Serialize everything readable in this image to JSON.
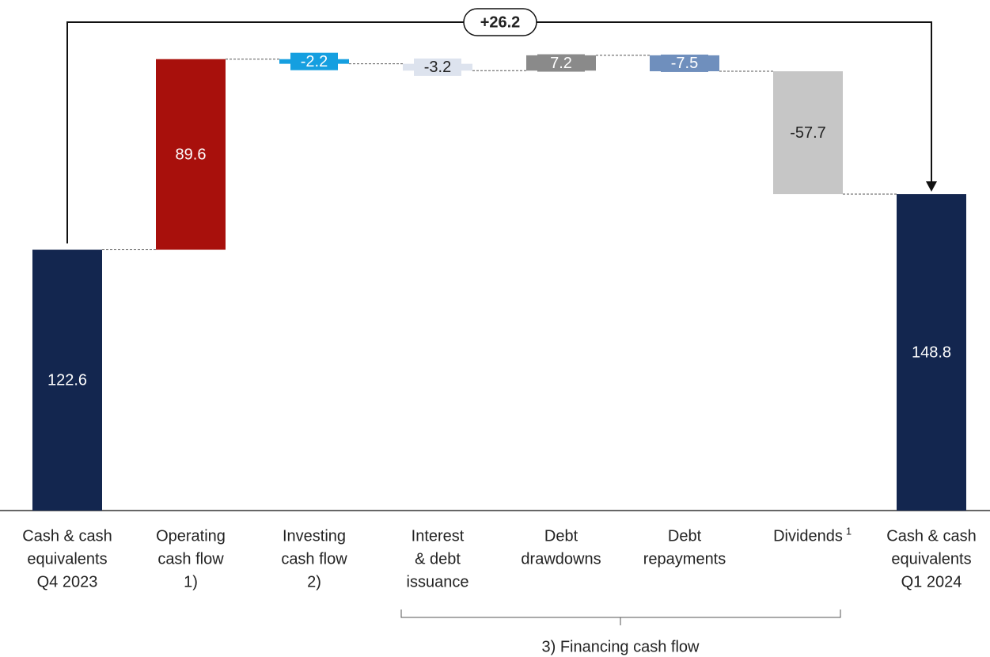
{
  "chart_data": {
    "type": "waterfall",
    "categories": [
      [
        "Cash & cash",
        "equivalents",
        "Q4 2023"
      ],
      [
        "Operating",
        "cash flow",
        "1)"
      ],
      [
        "Investing",
        "cash flow",
        "2)"
      ],
      [
        "Interest",
        "& debt",
        "issuance"
      ],
      [
        "Debt",
        "drawdowns"
      ],
      [
        "Debt",
        "repayments"
      ],
      [
        "Dividends"
      ],
      [
        "Cash & cash",
        "equivalents",
        "Q1 2024"
      ]
    ],
    "values": [
      122.6,
      89.6,
      -2.2,
      -3.2,
      7.2,
      -7.5,
      -57.7,
      148.8
    ],
    "measure": [
      "total",
      "relative",
      "relative",
      "relative",
      "relative",
      "relative",
      "relative",
      "total"
    ],
    "colors": [
      "#13264f",
      "#a8100c",
      "#159fe0",
      "#dde3ee",
      "#8a8a8a",
      "#6f8fbd",
      "#c6c6c6",
      "#13264f"
    ],
    "label_colors": [
      "#ffffff",
      "#ffffff",
      "#ffffff",
      "#222222",
      "#ffffff",
      "#ffffff",
      "#222222",
      "#ffffff"
    ],
    "ylim": [
      0,
      240
    ],
    "annotations": {
      "total_change": "+26.2",
      "dividends_note": "1",
      "group_label": "3) Financing cash flow"
    }
  }
}
